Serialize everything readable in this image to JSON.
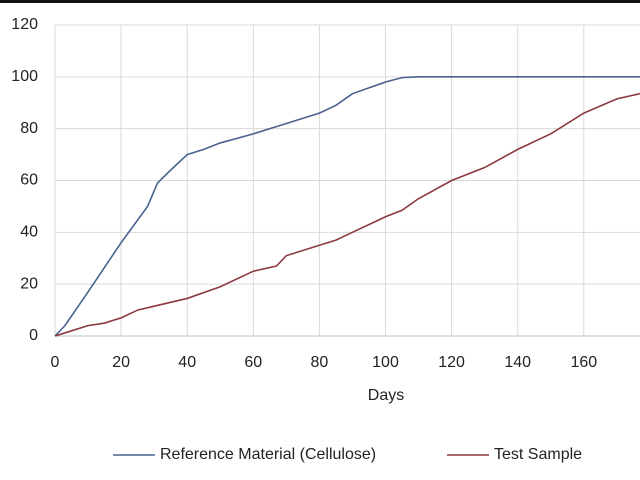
{
  "chart_data": {
    "type": "line",
    "x_label": "Days",
    "xlim": [
      0,
      177
    ],
    "xticks": [
      0,
      20,
      40,
      60,
      80,
      100,
      120,
      140,
      160
    ],
    "ylim": [
      0,
      120
    ],
    "yticks": [
      0,
      20,
      40,
      60,
      80,
      100,
      120
    ],
    "grid": true,
    "legend": "bottom",
    "series": [
      {
        "name": "Reference Material (Cellulose)",
        "color": "#4a6290",
        "x": [
          0,
          3,
          10,
          20,
          28,
          31,
          35,
          40,
          45,
          50,
          60,
          70,
          80,
          85,
          90,
          100,
          105,
          110,
          177
        ],
        "values": [
          0,
          4,
          17,
          36,
          50,
          59,
          64,
          70,
          72,
          74.5,
          78,
          82,
          86,
          89,
          93.5,
          98,
          99.7,
          100,
          100
        ]
      },
      {
        "name": "Test Sample",
        "color": "#8b3a3f",
        "x": [
          0,
          5,
          10,
          15,
          20,
          25,
          30,
          40,
          50,
          60,
          67,
          70,
          80,
          85,
          90,
          100,
          105,
          110,
          120,
          130,
          140,
          150,
          160,
          170,
          177
        ],
        "values": [
          0,
          2,
          4,
          5,
          7,
          10,
          11.5,
          14.5,
          19,
          25,
          27,
          31,
          35,
          37,
          40,
          46,
          48.5,
          53,
          60,
          65,
          72,
          78,
          86,
          91.5,
          93.5
        ]
      }
    ]
  }
}
